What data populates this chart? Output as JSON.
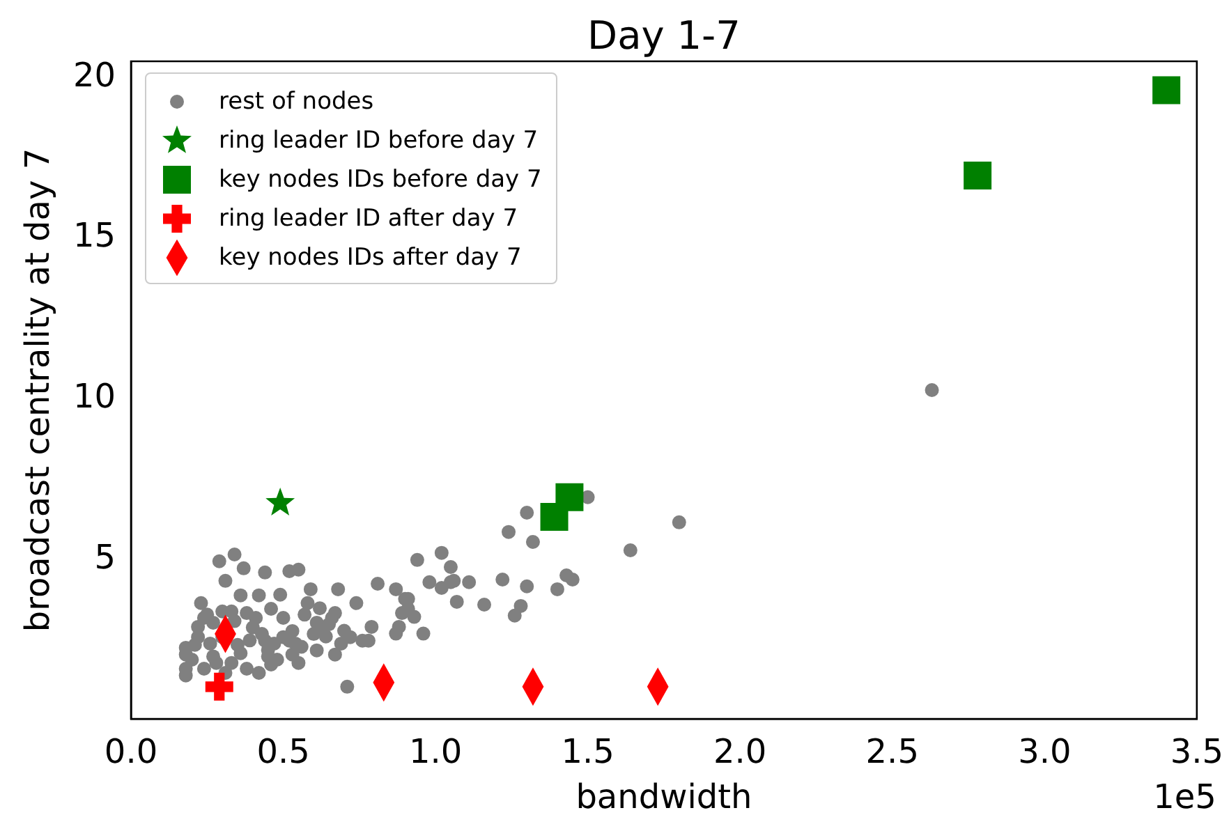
{
  "chart_data": {
    "type": "scatter",
    "title": "Day 1-7",
    "xlabel": "bandwidth",
    "ylabel": "broadcast centrality at day 7",
    "annotations": [
      "1e5"
    ],
    "xlim": [
      0,
      3.5
    ],
    "xticks": [
      {
        "value": 0,
        "label": "0.0"
      },
      0.5,
      {
        "value": 1,
        "label": "1.0"
      },
      1.5,
      {
        "value": 2,
        "label": "2.0"
      },
      2.5,
      {
        "value": 3,
        "label": "3.0"
      },
      3.5
    ],
    "ylim": [
      0.06,
      20.5
    ],
    "yticks": [
      5,
      10,
      15,
      20
    ],
    "grid": false,
    "legend": "top left",
    "series": [
      {
        "name": "rest of nodes",
        "color": "#808080",
        "marker": "circle",
        "x": [
          2.63,
          1.5,
          1.3,
          1.24,
          1.32,
          1.64,
          1.8,
          0.94,
          1.02,
          1.05,
          0.98,
          1.02,
          1.05,
          1.11,
          1.07,
          1.16,
          1.22,
          1.3,
          1.43,
          1.45,
          1.4,
          1.28,
          1.26,
          0.81,
          0.87,
          0.91,
          0.89,
          0.93,
          0.87,
          0.96,
          0.78,
          0.71,
          0.29,
          0.34,
          0.37,
          0.44,
          0.52,
          0.55,
          0.59,
          0.49,
          0.68,
          1.06,
          0.23,
          0.31,
          0.21,
          0.18,
          0.24,
          0.38,
          0.46,
          0.53,
          0.61,
          0.67,
          0.76,
          0.79,
          0.88,
          0.67,
          0.74,
          0.58,
          0.46,
          0.38,
          0.27,
          0.35,
          0.44,
          0.53,
          0.61,
          0.22,
          0.18,
          0.31,
          0.42,
          0.52,
          0.64,
          0.91,
          0.9,
          0.18,
          0.18,
          0.27,
          0.4,
          0.5,
          0.56,
          0.3,
          0.33,
          0.45,
          0.7,
          0.62,
          0.48,
          0.25,
          0.42,
          0.2,
          0.22,
          0.26,
          0.28,
          0.33,
          0.34,
          0.36,
          0.39,
          0.41,
          0.43,
          0.47,
          0.5,
          0.54,
          0.57,
          0.6,
          0.63,
          0.66,
          0.69,
          0.72,
          0.36,
          0.3,
          0.24,
          0.45,
          0.55,
          0.65
        ],
        "values": [
          10.28,
          6.95,
          6.47,
          5.87,
          5.56,
          5.3,
          6.17,
          5.0,
          5.22,
          4.78,
          4.31,
          4.13,
          4.31,
          4.31,
          3.7,
          3.61,
          4.39,
          4.18,
          4.52,
          4.39,
          4.09,
          3.57,
          3.27,
          4.26,
          4.09,
          3.79,
          3.35,
          3.23,
          2.71,
          2.71,
          2.49,
          1.06,
          4.96,
          5.17,
          4.74,
          4.61,
          4.65,
          4.7,
          4.09,
          3.92,
          4.09,
          4.35,
          3.66,
          4.35,
          2.36,
          1.62,
          1.62,
          1.62,
          1.75,
          2.06,
          2.19,
          2.06,
          2.49,
          2.92,
          2.92,
          3.35,
          3.66,
          3.66,
          3.48,
          3.35,
          3.05,
          2.36,
          2.49,
          2.79,
          3.05,
          2.92,
          2.06,
          1.49,
          1.49,
          2.49,
          2.62,
          3.48,
          3.79,
          2.27,
          1.41,
          2.0,
          2.9,
          3.2,
          2.3,
          2.6,
          1.8,
          2.2,
          2.8,
          3.5,
          1.9,
          3.3,
          3.9,
          1.9,
          2.6,
          2.4,
          1.8,
          3.4,
          3.1,
          2.1,
          2.5,
          3.2,
          2.7,
          2.4,
          2.6,
          2.4,
          3.3,
          2.7,
          2.9,
          3.2,
          2.4,
          2.6,
          3.9,
          3.4,
          3.2,
          2.0,
          1.8,
          3.0
        ]
      },
      {
        "name": "ring leader ID before day 7",
        "color": "#008000",
        "marker": "star",
        "x": [
          0.49
        ],
        "values": [
          6.77
        ]
      },
      {
        "name": "key nodes IDs before day 7",
        "color": "#008000",
        "marker": "square",
        "x": [
          2.78,
          3.4,
          1.39,
          1.44
        ],
        "values": [
          16.95,
          19.6,
          6.34,
          6.95
        ]
      },
      {
        "name": "ring leader ID after day 7",
        "color": "#ff0000",
        "marker": "cross",
        "x": [
          0.29
        ],
        "values": [
          1.06
        ]
      },
      {
        "name": "key nodes IDs after day 7",
        "color": "#ff0000",
        "marker": "diamond",
        "x": [
          0.31,
          0.83,
          1.32,
          1.73
        ],
        "values": [
          2.7,
          1.19,
          1.06,
          1.06
        ]
      }
    ]
  }
}
